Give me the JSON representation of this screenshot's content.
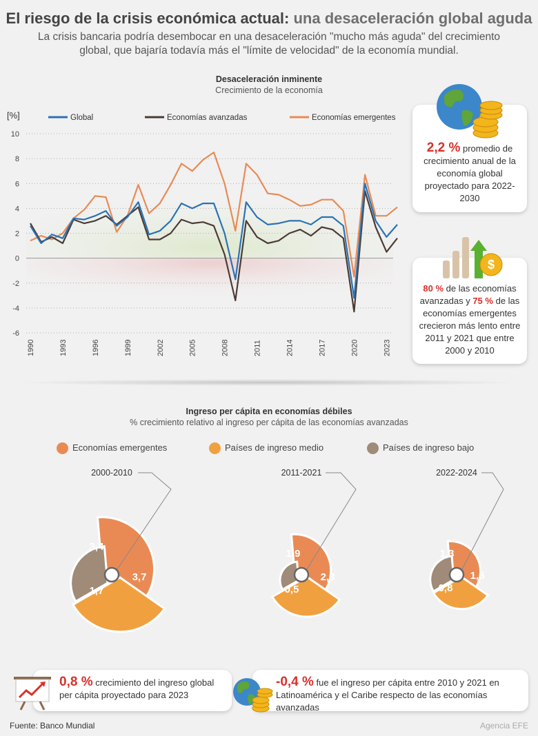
{
  "header": {
    "title_main": "El riesgo de la crisis económica actual:",
    "title_accent": "una desaceleración global aguda",
    "subtitle": "La crisis bancaria podría desembocar en una desaceleración \"mucho más aguda\" del crecimiento global, que bajaría todavía más el \"límite de velocidad\" de la economía mundial."
  },
  "colors": {
    "global": "#2a72b5",
    "avanzadas": "#4a3c34",
    "emergentes": "#e98a55",
    "medio": "#f1a040",
    "bajo": "#a08a78",
    "red": "#d9302a"
  },
  "chart_data": [
    {
      "type": "line",
      "title": "Desaceleración inminente",
      "subtitle": "Crecimiento de la economía",
      "ylabel": "[%]",
      "ylim": [
        -6,
        10
      ],
      "yticks": [
        10,
        8,
        6,
        4,
        2,
        0,
        -2,
        -4,
        -6
      ],
      "x": [
        1990,
        1991,
        1992,
        1993,
        1994,
        1995,
        1996,
        1997,
        1998,
        1999,
        2000,
        2001,
        2002,
        2003,
        2004,
        2005,
        2006,
        2007,
        2008,
        2009,
        2010,
        2011,
        2012,
        2013,
        2014,
        2015,
        2016,
        2017,
        2018,
        2019,
        2020,
        2021,
        2022,
        2023,
        2024
      ],
      "xticks": [
        "1990",
        "1993",
        "1996",
        "1999",
        "2002",
        "2005",
        "2008",
        "2011",
        "2014",
        "2017",
        "2020",
        "2023"
      ],
      "series": [
        {
          "name": "Global",
          "values": [
            2.6,
            1.2,
            1.9,
            1.6,
            3.2,
            3.1,
            3.4,
            3.8,
            2.6,
            3.3,
            4.5,
            1.9,
            2.2,
            3.0,
            4.4,
            4.0,
            4.4,
            4.4,
            2.0,
            -1.7,
            4.5,
            3.3,
            2.7,
            2.8,
            3.0,
            3.0,
            2.7,
            3.3,
            3.3,
            2.6,
            -3.2,
            6.0,
            3.0,
            1.7,
            2.7
          ]
        },
        {
          "name": "Economías avanzadas",
          "values": [
            2.8,
            1.3,
            1.7,
            1.2,
            3.1,
            2.8,
            3.0,
            3.4,
            2.7,
            3.4,
            4.1,
            1.5,
            1.5,
            2.0,
            3.1,
            2.8,
            2.9,
            2.6,
            0.3,
            -3.4,
            3.0,
            1.7,
            1.2,
            1.4,
            2.0,
            2.3,
            1.8,
            2.5,
            2.3,
            1.6,
            -4.3,
            5.4,
            2.5,
            0.5,
            1.6
          ]
        },
        {
          "name": "Economías emergentes",
          "values": [
            1.4,
            1.8,
            1.5,
            2.0,
            3.2,
            3.9,
            5.0,
            4.9,
            2.1,
            3.4,
            5.9,
            3.6,
            4.4,
            5.9,
            7.6,
            7.0,
            7.9,
            8.5,
            6.0,
            2.2,
            7.6,
            6.7,
            5.2,
            5.1,
            4.7,
            4.2,
            4.3,
            4.7,
            4.7,
            3.8,
            -1.5,
            6.7,
            3.4,
            3.4,
            4.1
          ]
        }
      ]
    },
    {
      "type": "pie",
      "title": "Ingreso per cápita en economías débiles",
      "subtitle": "% crecimiento relativo al ingreso per cápita de las economías avanzadas",
      "legend": [
        "Economías emergentes",
        "Países de ingreso medio",
        "Países de ingreso bajo"
      ],
      "charts": [
        {
          "period": "2000-2010",
          "values": [
            3.4,
            3.7,
            1.7
          ],
          "labels": [
            "3,4",
            "3,7",
            "1,7"
          ]
        },
        {
          "period": "2011-2021",
          "values": [
            1.9,
            2.3,
            0.5
          ],
          "labels": [
            "1,9",
            "2,3",
            "0,5"
          ]
        },
        {
          "period": "2022-2024",
          "values": [
            1.3,
            1.5,
            0.8
          ],
          "labels": [
            "1,3",
            "1,5",
            "0,8"
          ]
        }
      ]
    }
  ],
  "cards": {
    "card1": {
      "value": "2,2 %",
      "text": "promedio de crecimiento anual de la economía global proyectado para 2022-2030"
    },
    "card2": {
      "v1": "80 %",
      "t1": "de las economías avanzadas y",
      "v2": "75 %",
      "t2": "de las economías emergentes crecieron más lento entre 2011 y 2021 que entre 2000 y 2010"
    },
    "card3": {
      "value": "0,8 %",
      "text": "crecimiento del ingreso global per cápita proyectado para 2023"
    },
    "card4": {
      "value": "-0,4 %",
      "text": "fue el ingreso per cápita entre 2010 y 2021 en Latinoamérica y el Caribe respecto de las economías avanzadas"
    }
  },
  "footer": {
    "source": "Fuente: Banco Mundial",
    "agency": "Agencia EFE"
  }
}
